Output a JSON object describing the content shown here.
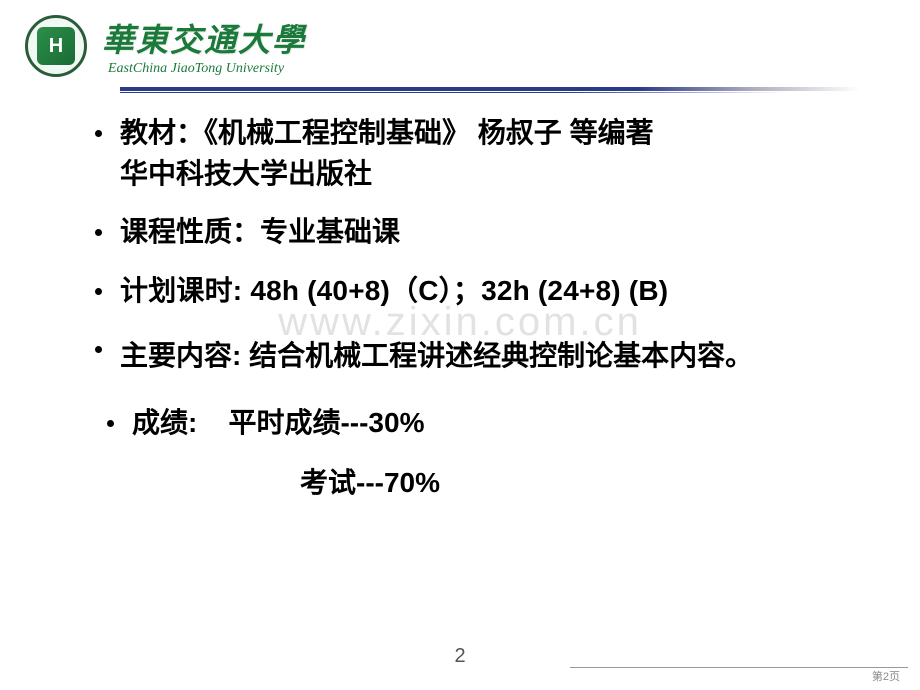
{
  "header": {
    "logo_letter": "H",
    "university_cn": "華東交通大學",
    "university_en": "EastChina JiaoTong University"
  },
  "watermark": "www.zixin.com.cn",
  "content": {
    "textbook": {
      "label": "教材：",
      "title": "《机械工程控制基础》 杨叔子  等编著",
      "publisher": "华中科技大学出版社"
    },
    "course_type": {
      "label": "课程性质：",
      "value": "专业基础课"
    },
    "hours": {
      "label": "计划课时:  ",
      "value": "48h  (40+8)（C）；32h  (24+8)  (B)"
    },
    "main_content": {
      "label": "主要内容: ",
      "value": "结合机械工程讲述经典控制论基本内容。"
    },
    "grades": {
      "label": " 成绩:",
      "regular": "    平时成绩---30%",
      "exam": "考试---70%"
    }
  },
  "page_number": "2",
  "footer_page": "第2页"
}
